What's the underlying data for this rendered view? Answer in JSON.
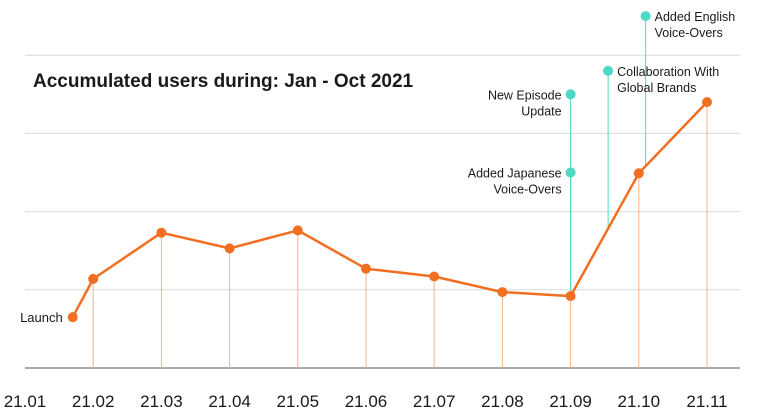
{
  "chart_data": {
    "type": "line",
    "title": "Accumulated users during: Jan - Oct 2021",
    "xlabel": "",
    "ylabel": "",
    "x_ticks": [
      "21.01",
      "21.02",
      "21.03",
      "21.04",
      "21.05",
      "21.06",
      "21.07",
      "21.08",
      "21.09",
      "21.10",
      "21.11"
    ],
    "ylim": [
      0,
      5
    ],
    "grid": "horizontal",
    "colors": {
      "line": "#f26f21",
      "annotation": "#4dd9c4",
      "grid": "#d9d9d9",
      "axis": "#555555"
    },
    "series": [
      {
        "points": [
          {
            "x": 1.7,
            "y": 0.65
          },
          {
            "x": 2.0,
            "y": 1.14
          },
          {
            "x": 3.0,
            "y": 1.73
          },
          {
            "x": 4.0,
            "y": 1.53
          },
          {
            "x": 5.0,
            "y": 1.76
          },
          {
            "x": 6.0,
            "y": 1.27
          },
          {
            "x": 7.0,
            "y": 1.17
          },
          {
            "x": 8.0,
            "y": 0.97
          },
          {
            "x": 9.0,
            "y": 0.92
          },
          {
            "x": 10.0,
            "y": 2.49
          },
          {
            "x": 11.0,
            "y": 3.4
          }
        ]
      }
    ],
    "point_labels": [
      {
        "text": "Launch"
      }
    ],
    "annotations": [
      {
        "lines": [
          "Added Japanese",
          "Voice-Overs"
        ],
        "x": 9.0,
        "y": 2.5,
        "side": "left"
      },
      {
        "lines": [
          "New Episode",
          "Update"
        ],
        "x": 9.0,
        "y": 3.5,
        "side": "left"
      },
      {
        "lines": [
          "Collaboration With",
          "Global Brands"
        ],
        "x": 9.55,
        "y": 3.8,
        "side": "right"
      },
      {
        "lines": [
          "Added English",
          "Voice-Overs"
        ],
        "x": 10.1,
        "y": 4.5,
        "side": "right"
      }
    ]
  }
}
